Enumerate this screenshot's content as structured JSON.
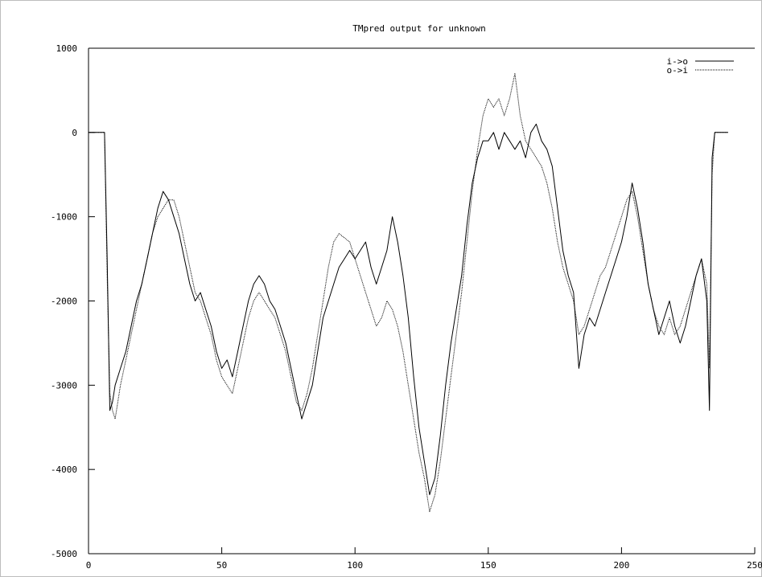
{
  "chart_data": {
    "type": "line",
    "title": "TMpred output for unknown",
    "xlabel": "",
    "ylabel": "",
    "xlim": [
      0,
      250
    ],
    "ylim": [
      -5000,
      1000
    ],
    "xticks": [
      0,
      50,
      100,
      150,
      200,
      250
    ],
    "yticks": [
      1000,
      0,
      -1000,
      -2000,
      -3000,
      -4000,
      -5000
    ],
    "grid": false,
    "legend_position": "top-right",
    "colors": {
      "axis": "#000000",
      "frame": "#bdbdbd",
      "line": "#000000"
    },
    "series": [
      {
        "name": "i->o",
        "style": "solid",
        "x": [
          0,
          6,
          7,
          8,
          9,
          10,
          12,
          14,
          16,
          18,
          20,
          22,
          24,
          26,
          28,
          30,
          32,
          34,
          36,
          38,
          40,
          42,
          44,
          46,
          48,
          50,
          52,
          54,
          56,
          58,
          60,
          62,
          64,
          66,
          68,
          70,
          72,
          74,
          76,
          78,
          80,
          82,
          84,
          86,
          88,
          90,
          92,
          94,
          96,
          98,
          100,
          102,
          104,
          106,
          108,
          110,
          112,
          114,
          116,
          118,
          120,
          122,
          124,
          126,
          128,
          130,
          132,
          134,
          136,
          138,
          140,
          142,
          144,
          146,
          148,
          150,
          152,
          154,
          156,
          158,
          160,
          162,
          164,
          166,
          168,
          170,
          172,
          174,
          176,
          178,
          180,
          182,
          184,
          186,
          188,
          190,
          192,
          194,
          196,
          198,
          200,
          202,
          204,
          206,
          208,
          210,
          212,
          214,
          216,
          218,
          220,
          222,
          224,
          226,
          228,
          230,
          232,
          233,
          234,
          235,
          240
        ],
        "values": [
          0,
          0,
          -1500,
          -3300,
          -3200,
          -3000,
          -2800,
          -2600,
          -2300,
          -2000,
          -1800,
          -1500,
          -1200,
          -900,
          -700,
          -800,
          -1000,
          -1200,
          -1500,
          -1800,
          -2000,
          -1900,
          -2100,
          -2300,
          -2600,
          -2800,
          -2700,
          -2900,
          -2600,
          -2300,
          -2000,
          -1800,
          -1700,
          -1800,
          -2000,
          -2100,
          -2300,
          -2500,
          -2800,
          -3100,
          -3400,
          -3200,
          -3000,
          -2600,
          -2200,
          -2000,
          -1800,
          -1600,
          -1500,
          -1400,
          -1500,
          -1400,
          -1300,
          -1600,
          -1800,
          -1600,
          -1400,
          -1000,
          -1300,
          -1700,
          -2200,
          -2900,
          -3500,
          -3900,
          -4300,
          -4100,
          -3600,
          -3000,
          -2500,
          -2100,
          -1700,
          -1100,
          -600,
          -300,
          -100,
          -100,
          0,
          -200,
          0,
          -100,
          -200,
          -100,
          -300,
          0,
          100,
          -100,
          -200,
          -400,
          -900,
          -1400,
          -1700,
          -1900,
          -2800,
          -2400,
          -2200,
          -2300,
          -2100,
          -1900,
          -1700,
          -1500,
          -1300,
          -1000,
          -600,
          -900,
          -1300,
          -1800,
          -2100,
          -2400,
          -2200,
          -2000,
          -2300,
          -2500,
          -2300,
          -2000,
          -1700,
          -1500,
          -2000,
          -3300,
          -300,
          0,
          0
        ]
      },
      {
        "name": "o->i",
        "style": "dotted",
        "x": [
          0,
          6,
          7,
          8,
          9,
          10,
          12,
          14,
          16,
          18,
          20,
          22,
          24,
          26,
          28,
          30,
          32,
          34,
          36,
          38,
          40,
          42,
          44,
          46,
          48,
          50,
          52,
          54,
          56,
          58,
          60,
          62,
          64,
          66,
          68,
          70,
          72,
          74,
          76,
          78,
          80,
          82,
          84,
          86,
          88,
          90,
          92,
          94,
          96,
          98,
          100,
          102,
          104,
          106,
          108,
          110,
          112,
          114,
          116,
          118,
          120,
          122,
          124,
          126,
          128,
          130,
          132,
          134,
          136,
          138,
          140,
          142,
          144,
          146,
          148,
          150,
          152,
          154,
          156,
          158,
          160,
          162,
          164,
          166,
          168,
          170,
          172,
          174,
          176,
          178,
          180,
          182,
          184,
          186,
          188,
          190,
          192,
          194,
          196,
          198,
          200,
          202,
          204,
          206,
          208,
          210,
          212,
          214,
          216,
          218,
          220,
          222,
          224,
          226,
          228,
          230,
          232,
          233,
          234,
          235,
          240
        ],
        "values": [
          0,
          0,
          -1700,
          -3100,
          -3300,
          -3400,
          -3000,
          -2700,
          -2400,
          -2100,
          -1800,
          -1500,
          -1200,
          -1000,
          -900,
          -800,
          -800,
          -1000,
          -1300,
          -1600,
          -1900,
          -2000,
          -2200,
          -2400,
          -2700,
          -2900,
          -3000,
          -3100,
          -2800,
          -2500,
          -2200,
          -2000,
          -1900,
          -2000,
          -2100,
          -2200,
          -2400,
          -2600,
          -2900,
          -3200,
          -3300,
          -3100,
          -2800,
          -2400,
          -2000,
          -1600,
          -1300,
          -1200,
          -1250,
          -1300,
          -1500,
          -1700,
          -1900,
          -2100,
          -2300,
          -2200,
          -2000,
          -2100,
          -2300,
          -2600,
          -3000,
          -3400,
          -3800,
          -4100,
          -4500,
          -4300,
          -3900,
          -3400,
          -2900,
          -2400,
          -1900,
          -1300,
          -700,
          -200,
          200,
          400,
          300,
          400,
          200,
          400,
          700,
          200,
          -100,
          -200,
          -300,
          -400,
          -600,
          -900,
          -1300,
          -1600,
          -1800,
          -2000,
          -2400,
          -2300,
          -2100,
          -1900,
          -1700,
          -1600,
          -1400,
          -1200,
          -1000,
          -800,
          -700,
          -1000,
          -1400,
          -1800,
          -2100,
          -2300,
          -2400,
          -2200,
          -2400,
          -2300,
          -2100,
          -1900,
          -1700,
          -1500,
          -1800,
          -2800,
          -500,
          0,
          0
        ]
      }
    ]
  }
}
